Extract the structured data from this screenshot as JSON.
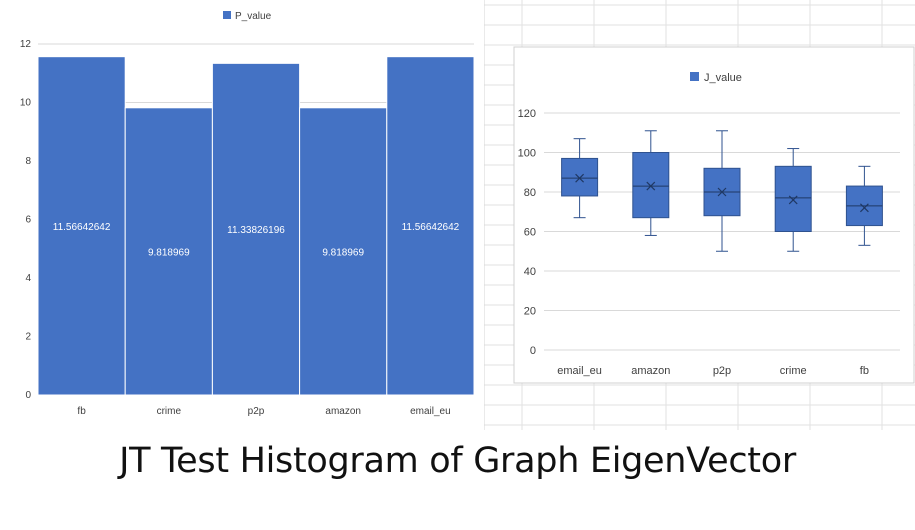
{
  "caption": "JT Test Histogram of Graph EigenVector",
  "colors": {
    "bar": "#4472C4",
    "bar_edge": "#ffffff",
    "grid": "#d9d9d9",
    "text": "#404040",
    "box_stroke": "#2f528f"
  },
  "chart_data": [
    {
      "type": "bar",
      "legend": "P_value",
      "legend_position": "top-center",
      "categories": [
        "fb",
        "crime",
        "p2p",
        "amazon",
        "email_eu"
      ],
      "values": [
        11.56642642,
        9.818969,
        11.33826196,
        9.818969,
        11.56642642
      ],
      "data_labels": [
        "11.56642642",
        "9.818969",
        "11.33826196",
        "9.818969",
        "11.56642642"
      ],
      "ylim": [
        0,
        12
      ],
      "yticks": [
        0,
        2,
        4,
        6,
        8,
        10,
        12
      ],
      "grid": true
    },
    {
      "type": "box",
      "legend": "J_value",
      "legend_position": "top-center",
      "categories": [
        "email_eu",
        "amazon",
        "p2p",
        "crime",
        "fb"
      ],
      "boxes": [
        {
          "min": 67,
          "q1": 78,
          "median": 87,
          "mean": 87,
          "q3": 97,
          "max": 107
        },
        {
          "min": 58,
          "q1": 67,
          "median": 83,
          "mean": 83,
          "q3": 100,
          "max": 111
        },
        {
          "min": 50,
          "q1": 68,
          "median": 80,
          "mean": 80,
          "q3": 92,
          "max": 111
        },
        {
          "min": 50,
          "q1": 60,
          "median": 77,
          "mean": 76,
          "q3": 93,
          "max": 102
        },
        {
          "min": 53,
          "q1": 63,
          "median": 73,
          "mean": 72,
          "q3": 83,
          "max": 93
        }
      ],
      "ylim": [
        0,
        120
      ],
      "yticks": [
        0,
        20,
        40,
        60,
        80,
        100,
        120
      ],
      "grid": true
    }
  ]
}
